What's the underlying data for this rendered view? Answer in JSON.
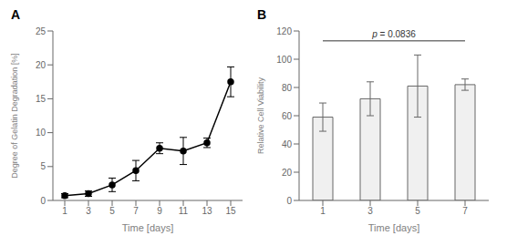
{
  "chart_data": [
    {
      "type": "line",
      "title": "A",
      "x": [
        1,
        3,
        5,
        7,
        9,
        11,
        13,
        15
      ],
      "values": [
        0.7,
        1.0,
        2.3,
        4.4,
        7.7,
        7.3,
        8.5,
        17.5
      ],
      "yerr": [
        0.3,
        0.4,
        1.0,
        1.5,
        0.8,
        2.0,
        0.7,
        2.2
      ],
      "xlabel": "Time [days]",
      "ylabel": "Degree of Gelatin Degradation  [%]",
      "xlim": [
        0,
        16
      ],
      "ylim": [
        0,
        25
      ],
      "xticks": [
        1,
        3,
        5,
        7,
        9,
        11,
        13,
        15
      ],
      "yticks": [
        0,
        5,
        10,
        15,
        20,
        25
      ],
      "color": "#000000",
      "marker": "o",
      "grid": false
    },
    {
      "type": "bar",
      "title": "B",
      "x": [
        1,
        3,
        5,
        7
      ],
      "values": [
        59,
        72,
        81,
        82
      ],
      "yerr": [
        10,
        12,
        22,
        4
      ],
      "xlabel": "Time [days]",
      "ylabel": "Relative Cell Viability",
      "xlim": [
        0,
        8
      ],
      "ylim": [
        0,
        120
      ],
      "xticks": [
        1,
        3,
        5,
        7
      ],
      "yticks": [
        0,
        20,
        40,
        60,
        80,
        100,
        120
      ],
      "color": "#f0f0f0",
      "grid": false,
      "annotations": [
        {
          "text": "p = 0.0836",
          "x": [
            1,
            7
          ],
          "y": 113
        }
      ]
    }
  ]
}
